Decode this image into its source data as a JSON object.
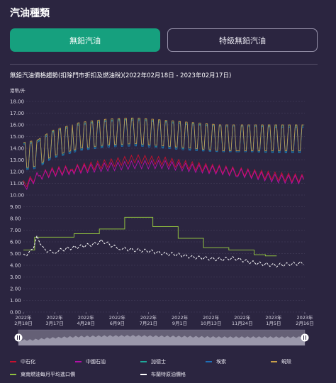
{
  "page": {
    "title": "汽油種類"
  },
  "tabs": [
    {
      "label": "無鉛汽油",
      "active": true
    },
    {
      "label": "特級無鉛汽油",
      "active": false
    }
  ],
  "colors": {
    "background": "#2b2540",
    "tab_active": "#16a07e",
    "sinopec": "#c8102e",
    "petrochina": "#b40fa8",
    "caltex": "#1fa89a",
    "esso": "#1e6fb8",
    "shell": "#c9a04a",
    "import_price": "#8fbf3f",
    "brent": "#ffffff"
  },
  "chart_data": {
    "type": "line",
    "title": "無鉛汽油價格趨勢(扣除門市折扣及燃油稅)(2022年02月18日 - 2023年02月17日)",
    "unit_label": "港幣/升",
    "ylim": [
      0,
      18
    ],
    "y_ticks": [
      "0.00",
      "1.00",
      "2.00",
      "3.00",
      "4.00",
      "5.00",
      "6.00",
      "7.00",
      "8.00",
      "9.00",
      "10.00",
      "11.00",
      "12.00",
      "13.00",
      "14.00",
      "15.00",
      "16.00",
      "17.00",
      "18.00"
    ],
    "x_ticks": [
      {
        "year": "2022年",
        "date": "2月18日"
      },
      {
        "year": "2022年",
        "date": "3月17日"
      },
      {
        "year": "2022年",
        "date": "4月28日"
      },
      {
        "year": "2022年",
        "date": "6月9日"
      },
      {
        "year": "2022年",
        "date": "7月21日"
      },
      {
        "year": "2022年",
        "date": "9月1日"
      },
      {
        "year": "2022年",
        "date": "10月13日"
      },
      {
        "year": "2022年",
        "date": "11月24日"
      },
      {
        "year": "2023年",
        "date": "1月5日"
      },
      {
        "year": "2023年",
        "date": "2月16日"
      }
    ],
    "grid": true,
    "legend_position": "bottom",
    "series": [
      {
        "name": "中石化",
        "color": "#c8102e",
        "x": [
          0,
          5,
          10,
          20,
          30,
          40,
          50,
          60,
          70,
          80,
          90,
          100
        ],
        "values": [
          10.9,
          11.6,
          12.0,
          12.3,
          12.7,
          13.1,
          12.9,
          12.5,
          12.2,
          11.9,
          11.6,
          11.4
        ]
      },
      {
        "name": "中國石油",
        "color": "#b40fa8",
        "x": [
          0,
          5,
          10,
          20,
          30,
          40,
          50,
          60,
          70,
          80,
          90,
          100
        ],
        "values": [
          10.6,
          11.6,
          11.9,
          12.2,
          12.4,
          12.6,
          12.6,
          12.3,
          12.1,
          11.8,
          11.4,
          11.3
        ]
      },
      {
        "name": "加德士",
        "color": "#1fa89a",
        "x": [
          0,
          5,
          10,
          20,
          30,
          40,
          50,
          60,
          70,
          80,
          90,
          100
        ],
        "values": [
          14.4,
          14.6,
          15.4,
          16.1,
          16.4,
          16.5,
          16.3,
          16.1,
          15.9,
          15.9,
          15.9,
          15.9
        ]
      },
      {
        "name": "埃索",
        "color": "#1e6fb8",
        "x": [
          0,
          5,
          10,
          20,
          30,
          40,
          50,
          60,
          70,
          80,
          90,
          100
        ],
        "values": [
          14.3,
          14.5,
          15.3,
          16.0,
          16.3,
          16.4,
          16.2,
          16.0,
          15.9,
          15.9,
          15.8,
          15.8
        ]
      },
      {
        "name": "蜆殼",
        "color": "#c9a04a",
        "x": [
          0,
          5,
          10,
          20,
          30,
          40,
          50,
          60,
          70,
          80,
          90,
          100
        ],
        "values": [
          14.5,
          14.7,
          15.5,
          16.2,
          16.5,
          16.6,
          16.4,
          16.2,
          16.0,
          16.0,
          16.0,
          16.0
        ]
      },
      {
        "name": "東南燃油每月平均進口價",
        "color": "#8fbf3f",
        "x": [
          0,
          4,
          8,
          18,
          27,
          36,
          46,
          55,
          64,
          73,
          82,
          86
        ],
        "values": [
          5.3,
          6.4,
          6.4,
          6.7,
          7.1,
          8.1,
          7.3,
          6.3,
          5.5,
          5.3,
          4.9,
          4.8
        ]
      },
      {
        "name": "布蘭特原油價格",
        "color": "#ffffff",
        "x": [
          0,
          3,
          5,
          7,
          10,
          15,
          20,
          25,
          28,
          32,
          36,
          40,
          45,
          50,
          55,
          60,
          65,
          70,
          75,
          80,
          85,
          90,
          95,
          100
        ],
        "values": [
          4.8,
          5.2,
          6.5,
          5.4,
          5.1,
          5.4,
          5.6,
          5.8,
          6.1,
          5.6,
          5.4,
          5.3,
          5.2,
          5.0,
          4.9,
          4.7,
          4.6,
          4.5,
          4.6,
          4.3,
          4.1,
          4.0,
          4.1,
          4.2
        ]
      }
    ]
  }
}
